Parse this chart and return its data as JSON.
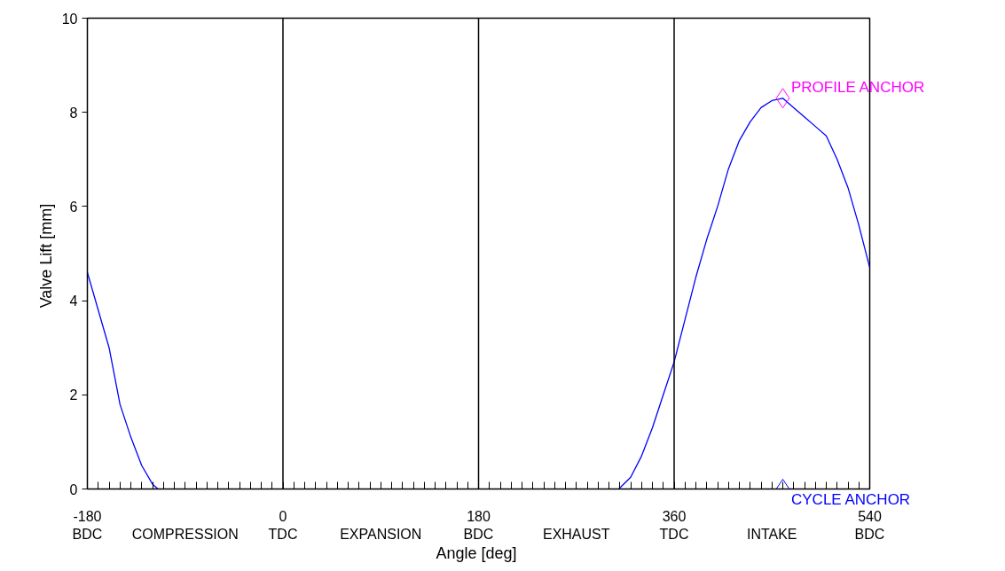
{
  "chart_data": {
    "type": "line",
    "xlabel": "Angle  [deg]",
    "ylabel": "Valve Lift  [mm]",
    "xlim": [
      -180,
      540
    ],
    "ylim": [
      0,
      10
    ],
    "xticks": [
      {
        "value": -180,
        "label": "-180\nBDC"
      },
      {
        "value": -90,
        "label": "\nCOMPRESSION"
      },
      {
        "value": 0,
        "label": "0\nTDC"
      },
      {
        "value": 90,
        "label": "\nEXPANSION"
      },
      {
        "value": 180,
        "label": "180\nBDC"
      },
      {
        "value": 270,
        "label": "\nEXHAUST"
      },
      {
        "value": 360,
        "label": "360\nTDC"
      },
      {
        "value": 450,
        "label": "\nINTAKE"
      },
      {
        "value": 540,
        "label": "540\nBDC"
      },
      {
        "value": -170,
        "label": null
      },
      {
        "value": -160,
        "label": null
      },
      {
        "value": -150,
        "label": null
      },
      {
        "value": -140,
        "label": null
      },
      {
        "value": -130,
        "label": null
      },
      {
        "value": -120,
        "label": null
      },
      {
        "value": -110,
        "label": null
      },
      {
        "value": -100,
        "label": null
      },
      {
        "value": -80,
        "label": null
      },
      {
        "value": -70,
        "label": null
      },
      {
        "value": -60,
        "label": null
      },
      {
        "value": -50,
        "label": null
      },
      {
        "value": -40,
        "label": null
      },
      {
        "value": -30,
        "label": null
      },
      {
        "value": -20,
        "label": null
      },
      {
        "value": -10,
        "label": null
      },
      {
        "value": 10,
        "label": null
      },
      {
        "value": 20,
        "label": null
      },
      {
        "value": 30,
        "label": null
      },
      {
        "value": 40,
        "label": null
      },
      {
        "value": 50,
        "label": null
      },
      {
        "value": 60,
        "label": null
      },
      {
        "value": 70,
        "label": null
      },
      {
        "value": 80,
        "label": null
      },
      {
        "value": 100,
        "label": null
      },
      {
        "value": 110,
        "label": null
      },
      {
        "value": 120,
        "label": null
      },
      {
        "value": 130,
        "label": null
      },
      {
        "value": 140,
        "label": null
      },
      {
        "value": 150,
        "label": null
      },
      {
        "value": 160,
        "label": null
      },
      {
        "value": 170,
        "label": null
      },
      {
        "value": 190,
        "label": null
      },
      {
        "value": 200,
        "label": null
      },
      {
        "value": 210,
        "label": null
      },
      {
        "value": 220,
        "label": null
      },
      {
        "value": 230,
        "label": null
      },
      {
        "value": 240,
        "label": null
      },
      {
        "value": 250,
        "label": null
      },
      {
        "value": 260,
        "label": null
      },
      {
        "value": 280,
        "label": null
      },
      {
        "value": 290,
        "label": null
      },
      {
        "value": 300,
        "label": null
      },
      {
        "value": 310,
        "label": null
      },
      {
        "value": 320,
        "label": null
      },
      {
        "value": 330,
        "label": null
      },
      {
        "value": 340,
        "label": null
      },
      {
        "value": 350,
        "label": null
      },
      {
        "value": 370,
        "label": null
      },
      {
        "value": 380,
        "label": null
      },
      {
        "value": 390,
        "label": null
      },
      {
        "value": 400,
        "label": null
      },
      {
        "value": 410,
        "label": null
      },
      {
        "value": 420,
        "label": null
      },
      {
        "value": 430,
        "label": null
      },
      {
        "value": 440,
        "label": null
      },
      {
        "value": 460,
        "label": null
      },
      {
        "value": 470,
        "label": null
      },
      {
        "value": 480,
        "label": null
      },
      {
        "value": 490,
        "label": null
      },
      {
        "value": 500,
        "label": null
      },
      {
        "value": 510,
        "label": null
      },
      {
        "value": 520,
        "label": null
      },
      {
        "value": 530,
        "label": null
      }
    ],
    "yticks": [
      0,
      2,
      4,
      6,
      8,
      10
    ],
    "grid": false,
    "legend": false,
    "ref_lines": [
      {
        "axis": "x",
        "value": 0,
        "color": "#000000"
      },
      {
        "axis": "x",
        "value": 180,
        "color": "#000000"
      },
      {
        "axis": "x",
        "value": 360,
        "color": "#000000"
      }
    ],
    "series": [
      {
        "color": "#0000ff",
        "marker": "none",
        "x": [
          -180,
          -170,
          -160,
          -150,
          -140,
          -130,
          -120,
          -115,
          309,
          320,
          330,
          340,
          350,
          360,
          370,
          380,
          390,
          400,
          410,
          420,
          430,
          440,
          450,
          460,
          470,
          480,
          490,
          500,
          510,
          520,
          530,
          540
        ],
        "values": [
          4.6,
          3.8,
          3.0,
          1.8,
          1.1,
          0.5,
          0.1,
          0,
          0,
          0.25,
          0.7,
          1.3,
          2.0,
          2.7,
          3.6,
          4.5,
          5.3,
          6.0,
          6.8,
          7.4,
          7.8,
          8.1,
          8.25,
          8.3,
          8.1,
          7.9,
          7.7,
          7.5,
          7.0,
          6.4,
          5.6,
          4.7
        ]
      },
      {
        "type": "scatter",
        "name": "PROFILE ANCHOR",
        "color": "#ff00ff",
        "marker": "diamond",
        "x": [
          460
        ],
        "values": [
          8.3
        ]
      },
      {
        "type": "scatter",
        "name": "CYCLE ANCHOR",
        "color": "#0000ff",
        "marker": "diamond",
        "x": [
          460
        ],
        "values": [
          0
        ]
      }
    ]
  }
}
